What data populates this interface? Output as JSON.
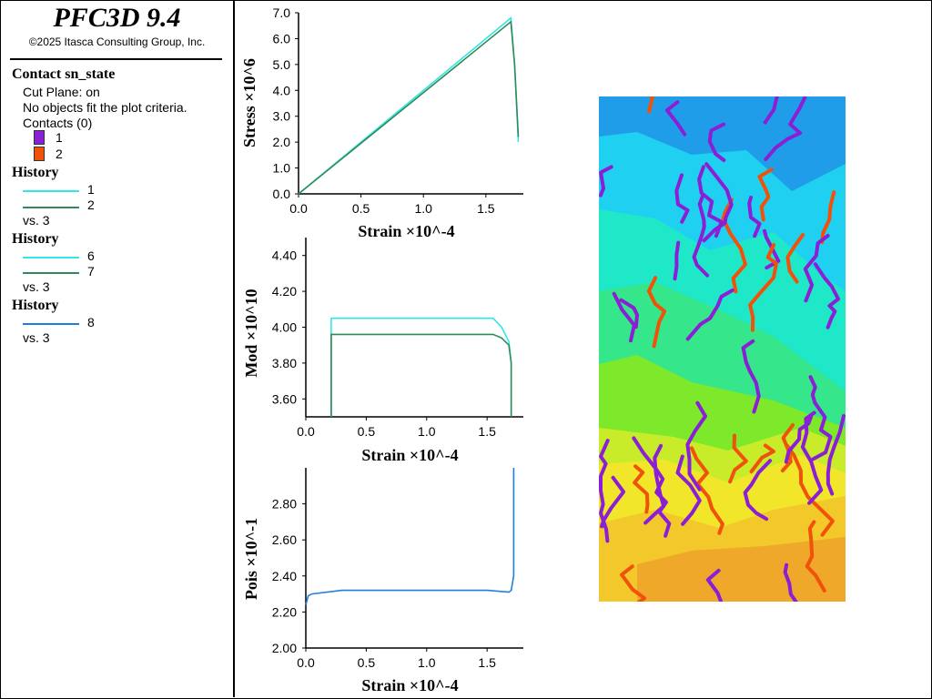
{
  "app": {
    "title": "PFC3D 9.4",
    "copyright": "©2025 Itasca Consulting Group, Inc."
  },
  "legend": {
    "contact": {
      "title": "Contact sn_state",
      "cut_plane": "Cut Plane: on",
      "no_objects": "No objects fit the plot criteria.",
      "contacts": "Contacts (0)",
      "items": [
        {
          "label": "1",
          "color": "#8a1fd6"
        },
        {
          "label": "2",
          "color": "#f0520a"
        }
      ]
    },
    "histories": [
      {
        "title": "History",
        "items": [
          {
            "label": "1",
            "color": "#33e6e6"
          },
          {
            "label": "2",
            "color": "#2e8b57"
          }
        ],
        "vs": "vs. 3"
      },
      {
        "title": "History",
        "items": [
          {
            "label": "6",
            "color": "#33e6e6"
          },
          {
            "label": "7",
            "color": "#2e8b57"
          }
        ],
        "vs": "vs. 3"
      },
      {
        "title": "History",
        "items": [
          {
            "label": "8",
            "color": "#1f7fe0"
          }
        ],
        "vs": "vs. 3"
      }
    ]
  },
  "chart_data": [
    {
      "type": "line",
      "xlabel": "Strain ×10^-4",
      "ylabel": "Stress ×10^6",
      "xlim": [
        0.0,
        1.8
      ],
      "ylim": [
        0.0,
        7.0
      ],
      "xticks": [
        "0.0",
        "0.5",
        "1.0",
        "1.5"
      ],
      "yticks": [
        "0.0",
        "1.0",
        "2.0",
        "3.0",
        "4.0",
        "5.0",
        "6.0",
        "7.0"
      ],
      "series": [
        {
          "name": "1",
          "color": "#33e6e6",
          "x": [
            0.0,
            1.7,
            1.73,
            1.76
          ],
          "y": [
            0.0,
            6.8,
            5.0,
            2.0
          ]
        },
        {
          "name": "2",
          "color": "#2e8b57",
          "x": [
            0.0,
            1.7,
            1.73,
            1.76
          ],
          "y": [
            0.0,
            6.65,
            5.0,
            2.2
          ]
        }
      ]
    },
    {
      "type": "line",
      "xlabel": "Strain ×10^-4",
      "ylabel": "Mod ×10^10",
      "xlim": [
        0.0,
        1.8
      ],
      "ylim": [
        3.5,
        4.5
      ],
      "xticks": [
        "0.0",
        "0.5",
        "1.0",
        "1.5"
      ],
      "yticks": [
        "3.60",
        "3.80",
        "4.00",
        "4.20",
        "4.40"
      ],
      "series": [
        {
          "name": "6",
          "color": "#33e6e6",
          "x": [
            0.21,
            0.21,
            0.4,
            0.8,
            1.2,
            1.55,
            1.62,
            1.68,
            1.7,
            1.7
          ],
          "y": [
            3.5,
            4.05,
            4.05,
            4.05,
            4.05,
            4.05,
            4.0,
            3.92,
            3.8,
            3.5
          ]
        },
        {
          "name": "7",
          "color": "#2e8b57",
          "x": [
            0.21,
            0.21,
            0.4,
            0.8,
            1.2,
            1.55,
            1.62,
            1.68,
            1.7,
            1.7
          ],
          "y": [
            3.5,
            3.96,
            3.96,
            3.96,
            3.96,
            3.96,
            3.94,
            3.9,
            3.8,
            3.5
          ]
        }
      ]
    },
    {
      "type": "line",
      "xlabel": "Strain ×10^-4",
      "ylabel": "Pois ×10^-1",
      "xlim": [
        0.0,
        1.8
      ],
      "ylim": [
        2.0,
        3.0
      ],
      "xticks": [
        "0.0",
        "0.5",
        "1.0",
        "1.5"
      ],
      "yticks": [
        "2.00",
        "2.20",
        "2.40",
        "2.60",
        "2.80"
      ],
      "series": [
        {
          "name": "8",
          "color": "#1f7fe0",
          "x": [
            0.0,
            0.02,
            0.05,
            0.3,
            0.8,
            1.2,
            1.5,
            1.68,
            1.7,
            1.72,
            1.72
          ],
          "y": [
            2.24,
            2.29,
            2.3,
            2.32,
            2.32,
            2.32,
            2.32,
            2.31,
            2.32,
            2.4,
            3.0
          ]
        }
      ]
    }
  ],
  "model_view": {
    "field_colors": [
      "#1f9de8",
      "#1fd0f0",
      "#1fe8c8",
      "#35e68a",
      "#7ee82a",
      "#c8ec2a",
      "#f2e62a",
      "#f2c82a",
      "#f0a82a"
    ],
    "crack_colors": [
      "#8a1fd6",
      "#f0520a"
    ]
  }
}
